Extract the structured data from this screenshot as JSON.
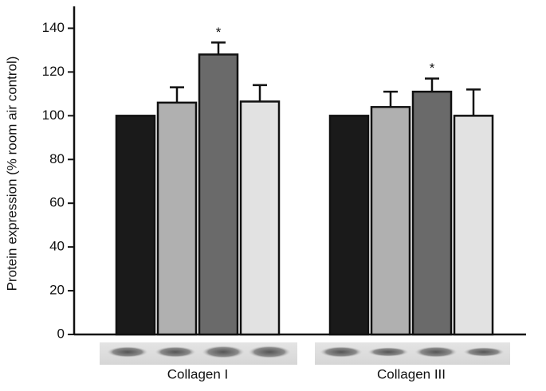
{
  "chart_data": {
    "type": "bar",
    "y_label": "Protein expression (% room air control)",
    "categories": [
      "Collagen I",
      "Collagen III"
    ],
    "series": [
      {
        "color": "#1a1a1a",
        "values": [
          100,
          100
        ],
        "errors": [
          0,
          0
        ]
      },
      {
        "color": "#b0b0b0",
        "values": [
          106,
          104
        ],
        "errors": [
          7,
          7
        ]
      },
      {
        "color": "#6a6a6a",
        "values": [
          128,
          111
        ],
        "errors": [
          5.5,
          6
        ]
      },
      {
        "color": "#e2e2e2",
        "values": [
          106.5,
          100
        ],
        "errors": [
          7.5,
          12
        ]
      }
    ],
    "annotations": [
      "*",
      "*"
    ],
    "ylim": [
      0,
      150
    ],
    "yticks": [
      0,
      20,
      40,
      60,
      80,
      100,
      120,
      140
    ],
    "grid": false
  }
}
